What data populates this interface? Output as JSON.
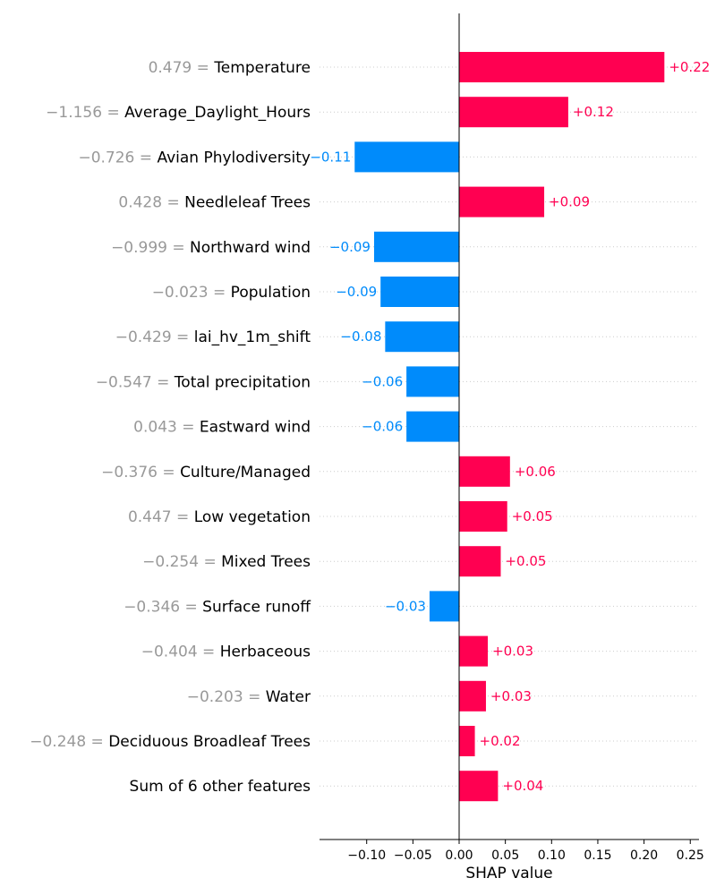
{
  "chart_data": {
    "type": "bar",
    "orientation": "horizontal",
    "xlabel": "SHAP value",
    "ylabel": "",
    "title": "",
    "xlim": [
      -0.15,
      0.26
    ],
    "xticks": [
      -0.1,
      -0.05,
      0.0,
      0.05,
      0.1,
      0.15,
      0.2,
      0.25
    ],
    "xtick_labels": [
      "−0.10",
      "−0.05",
      "0.00",
      "0.05",
      "0.10",
      "0.15",
      "0.20",
      "0.25"
    ],
    "grid": "dotted horizontal row lines",
    "colors": {
      "positive": "#ff0051",
      "negative": "#008bfb",
      "feature_value": "#999999"
    },
    "features": [
      {
        "value": "0.479",
        "name": "Temperature",
        "shap": 0.222,
        "label": "+0.22"
      },
      {
        "value": "−1.156",
        "name": "Average_Daylight_Hours",
        "shap": 0.118,
        "label": "+0.12"
      },
      {
        "value": "−0.726",
        "name": "Avian Phylodiversity",
        "shap": -0.113,
        "label": "−0.11"
      },
      {
        "value": "0.428",
        "name": "Needleleaf Trees",
        "shap": 0.092,
        "label": "+0.09"
      },
      {
        "value": "−0.999",
        "name": "Northward wind",
        "shap": -0.092,
        "label": "−0.09"
      },
      {
        "value": "−0.023",
        "name": "Population",
        "shap": -0.085,
        "label": "−0.09"
      },
      {
        "value": "−0.429",
        "name": "lai_hv_1m_shift",
        "shap": -0.08,
        "label": "−0.08"
      },
      {
        "value": "−0.547",
        "name": "Total precipitation",
        "shap": -0.057,
        "label": "−0.06"
      },
      {
        "value": "0.043",
        "name": "Eastward wind",
        "shap": -0.057,
        "label": "−0.06"
      },
      {
        "value": "−0.376",
        "name": "Culture/Managed",
        "shap": 0.055,
        "label": "+0.06"
      },
      {
        "value": "0.447",
        "name": "Low vegetation",
        "shap": 0.052,
        "label": "+0.05"
      },
      {
        "value": "−0.254",
        "name": "Mixed Trees",
        "shap": 0.045,
        "label": "+0.05"
      },
      {
        "value": "−0.346",
        "name": "Surface runoff",
        "shap": -0.032,
        "label": "−0.03"
      },
      {
        "value": "−0.404",
        "name": "Herbaceous",
        "shap": 0.031,
        "label": "+0.03"
      },
      {
        "value": "−0.203",
        "name": "Water",
        "shap": 0.029,
        "label": "+0.03"
      },
      {
        "value": "−0.248",
        "name": "Deciduous Broadleaf Trees",
        "shap": 0.017,
        "label": "+0.02"
      },
      {
        "value": "",
        "name": "Sum of 6 other features",
        "shap": 0.042,
        "label": "+0.04"
      }
    ]
  }
}
